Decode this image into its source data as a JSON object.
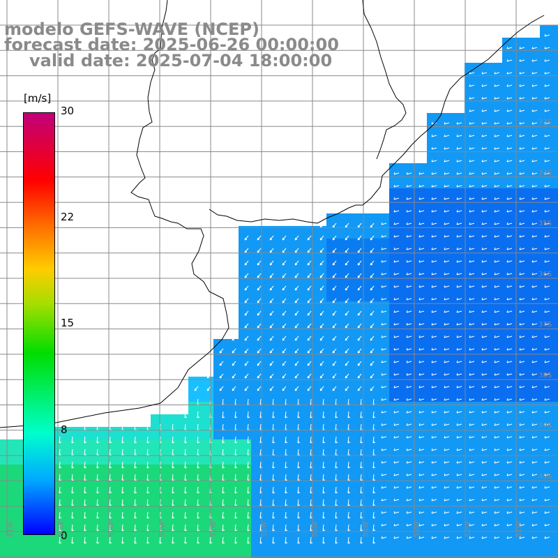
{
  "title": {
    "line1": "modelo GEFS-WAVE (NCEP)",
    "line2": "forecast date: 2025-06-26 00:00:00",
    "line3": "valid date: 2025-07-04 18:00:00"
  },
  "colorbar": {
    "unit": "[m/s]",
    "ticks": [
      "30",
      "22",
      "15",
      "8",
      "0"
    ],
    "tick_values": [
      30,
      22,
      15,
      8,
      0
    ],
    "min": 0,
    "max": 30,
    "colors": [
      "#c0007a",
      "#ff0000",
      "#ff6600",
      "#ffcc00",
      "#00dd00",
      "#00ffcc",
      "#00aaff",
      "#0000ff"
    ]
  },
  "lat_labels": [
    "33S",
    "34S",
    "35S",
    "36S",
    "37S",
    "38S",
    "39S",
    "40S"
  ],
  "lon_labels": [
    "61W",
    "60W",
    "59W",
    "58W",
    "57W",
    "56W",
    "55W",
    "54W",
    "53W",
    "52W",
    "51W"
  ],
  "map": {
    "land_color": "#ffffff",
    "coast_color": "#000000",
    "grid_color": "#888888",
    "arrow_color": "#ffffff",
    "wind_field": "wind speed shading with white direction arrows, mostly from the northeast turning to southward flow near the southwest"
  }
}
